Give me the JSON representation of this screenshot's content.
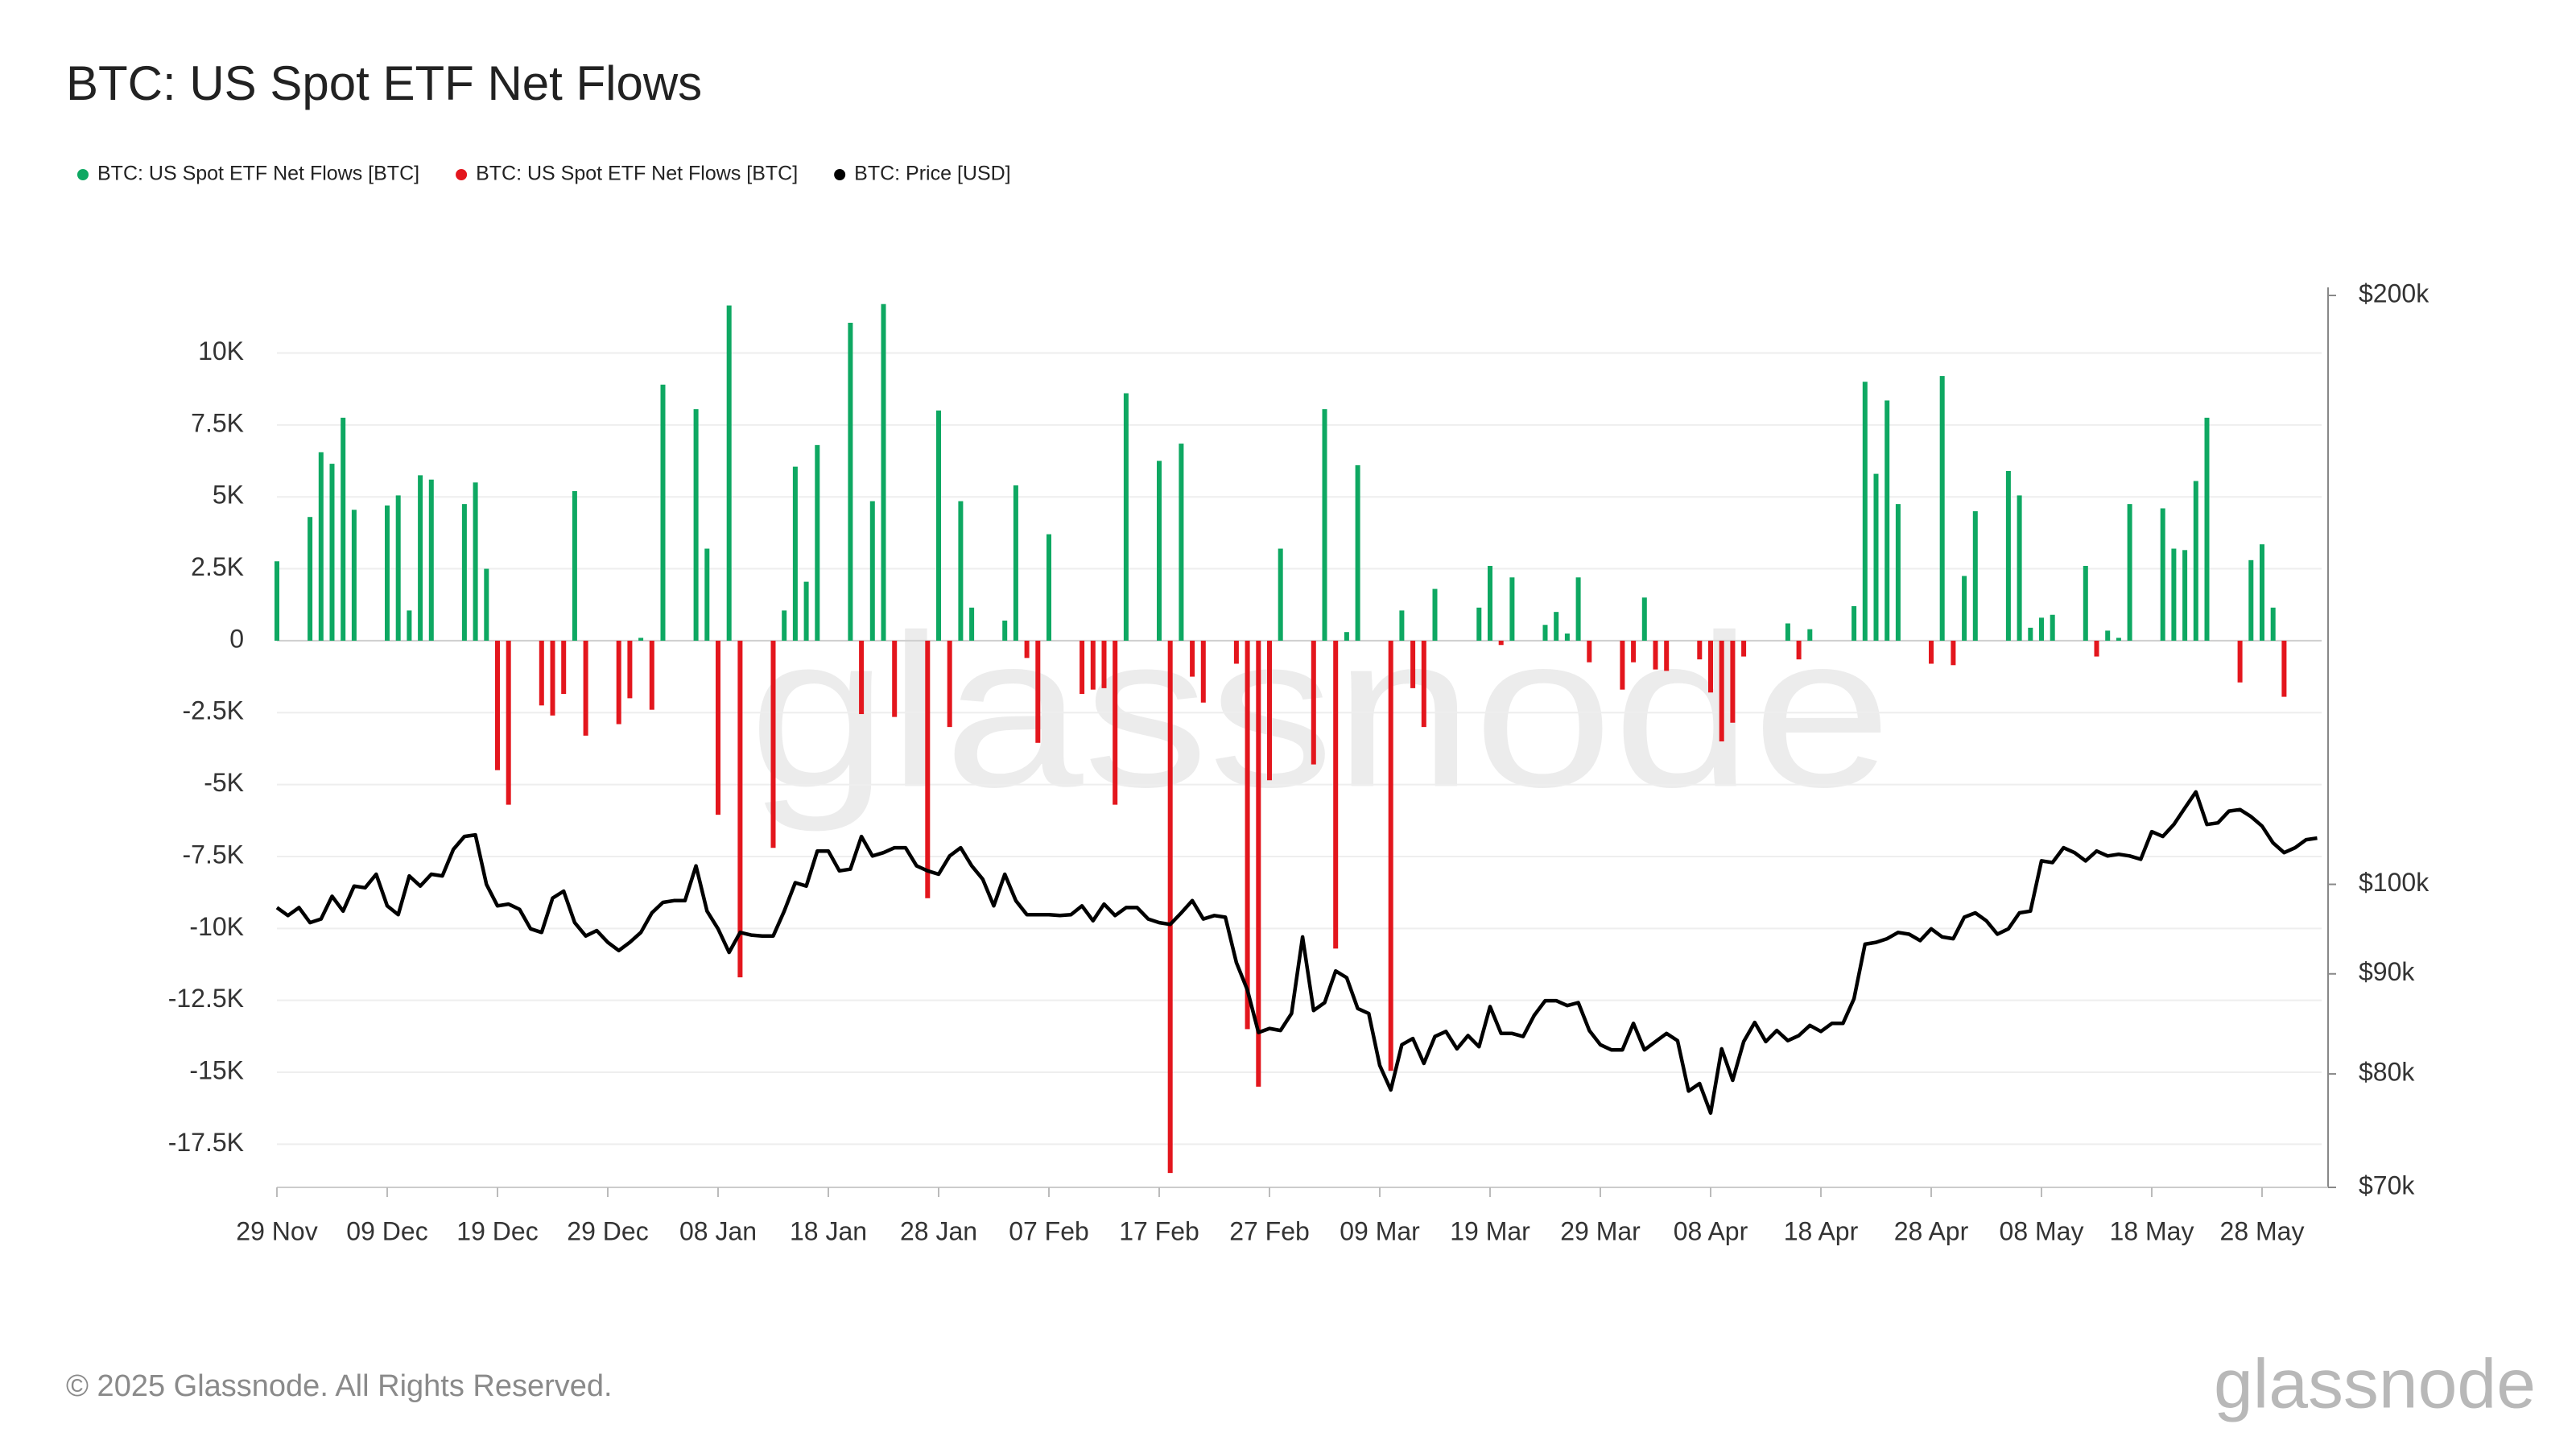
{
  "chart_data": {
    "type": "bar",
    "title": "BTC: US Spot ETF Net Flows",
    "copyright": "© 2025 Glassnode. All Rights Reserved.",
    "logo": "glassnode",
    "watermark": "glassnode",
    "legend": "top-left",
    "grid": true,
    "categories": [
      "29 Nov",
      null,
      null,
      null,
      null,
      null,
      null,
      null,
      null,
      null,
      "09 Dec",
      null,
      null,
      null,
      null,
      null,
      null,
      null,
      null,
      null,
      "19 Dec",
      null,
      null,
      null,
      null,
      null,
      null,
      null,
      null,
      null,
      "29 Dec",
      null,
      null,
      null,
      null,
      null,
      null,
      null,
      null,
      null,
      "08 Jan",
      null,
      null,
      null,
      null,
      null,
      null,
      null,
      null,
      null,
      "18 Jan",
      null,
      null,
      null,
      null,
      null,
      null,
      null,
      null,
      null,
      "28 Jan",
      null,
      null,
      null,
      null,
      null,
      null,
      null,
      null,
      null,
      "07 Feb",
      null,
      null,
      null,
      null,
      null,
      null,
      null,
      null,
      null,
      "17 Feb",
      null,
      null,
      null,
      null,
      null,
      null,
      null,
      null,
      null,
      "27 Feb",
      null,
      null,
      null,
      null,
      null,
      null,
      null,
      null,
      null,
      "09 Mar",
      null,
      null,
      null,
      null,
      null,
      null,
      null,
      null,
      null,
      "19 Mar",
      null,
      null,
      null,
      null,
      null,
      null,
      null,
      null,
      null,
      "29 Mar",
      null,
      null,
      null,
      null,
      null,
      null,
      null,
      null,
      null,
      "08 Apr",
      null,
      null,
      null,
      null,
      null,
      null,
      null,
      null,
      null,
      "18 Apr",
      null,
      null,
      null,
      null,
      null,
      null,
      null,
      null,
      null,
      "28 Apr",
      null,
      null,
      null,
      null,
      null,
      null,
      null,
      null,
      null,
      "08 May",
      null,
      null,
      null,
      null,
      null,
      null,
      null,
      null,
      null,
      "18 May",
      null,
      null,
      null,
      null,
      null,
      null,
      null,
      null,
      null,
      "28 May",
      null,
      null,
      null,
      null,
      null
    ],
    "ylim": [
      -19000,
      12000
    ],
    "yticks": [
      {
        "value": -17500,
        "label": "-17.5K"
      },
      {
        "value": -15000,
        "label": "-15K"
      },
      {
        "value": -12500,
        "label": "-12.5K"
      },
      {
        "value": -10000,
        "label": "-10K"
      },
      {
        "value": -7500,
        "label": "-7.5K"
      },
      {
        "value": -5000,
        "label": "-5K"
      },
      {
        "value": -2500,
        "label": "-2.5K"
      },
      0,
      {
        "value": 2500,
        "label": "2.5K"
      },
      {
        "value": 5000,
        "label": "5K"
      },
      {
        "value": 7500,
        "label": "7.5K"
      },
      {
        "value": 10000,
        "label": "10K"
      }
    ],
    "y2lim": [
      70000,
      200000
    ],
    "y2scale": "log",
    "y2ticks": [
      {
        "value": 70000,
        "label": "$70k"
      },
      {
        "value": 80000,
        "label": "$80k"
      },
      {
        "value": 90000,
        "label": "$90k"
      },
      {
        "value": 100000,
        "label": "$100k"
      },
      {
        "value": 200000,
        "label": "$200k"
      }
    ],
    "series": [
      {
        "name": "BTC: US Spot ETF Net Flows [BTC]",
        "type": "bar",
        "color": "#0ea862",
        "values": [
          2760,
          null,
          null,
          4300,
          6550,
          6150,
          7750,
          4550,
          null,
          null,
          4700,
          5050,
          1050,
          5750,
          5600,
          null,
          null,
          4750,
          5500,
          2500,
          null,
          null,
          null,
          null,
          null,
          null,
          null,
          5200,
          null,
          null,
          null,
          null,
          null,
          100,
          null,
          8900,
          null,
          null,
          8050,
          3200,
          null,
          11650,
          null,
          null,
          null,
          null,
          1050,
          6050,
          2050,
          6800,
          null,
          null,
          11050,
          null,
          4850,
          11700,
          null,
          null,
          null,
          null,
          8000,
          null,
          4850,
          1150,
          null,
          null,
          700,
          5400,
          null,
          null,
          3700,
          null,
          null,
          null,
          null,
          null,
          null,
          8600,
          null,
          null,
          6250,
          null,
          6850,
          null,
          null,
          null,
          null,
          null,
          null,
          null,
          null,
          3200,
          null,
          null,
          null,
          8050,
          null,
          300,
          6100,
          null,
          null,
          null,
          1050,
          null,
          null,
          1800,
          null,
          null,
          null,
          1150,
          2600,
          null,
          2200,
          null,
          null,
          550,
          1000,
          250,
          2200,
          null,
          null,
          null,
          null,
          null,
          1500,
          null,
          null,
          null,
          null,
          null,
          null,
          null,
          null,
          null,
          null,
          null,
          null,
          600,
          null,
          400,
          null,
          null,
          null,
          1200,
          9000,
          5800,
          8350,
          4750,
          null,
          null,
          null,
          9200,
          null,
          2250,
          4500,
          null,
          null,
          5900,
          5050,
          450,
          800,
          900,
          null,
          null,
          2600,
          null,
          350,
          100,
          4750,
          null,
          null,
          4600,
          3200,
          3150,
          5550,
          7750,
          null,
          null,
          null,
          2800,
          3350,
          1150,
          null,
          null,
          null,
          null
        ]
      },
      {
        "name": "BTC: US Spot ETF Net Flows [BTC]",
        "type": "bar",
        "color": "#e3161d",
        "values": [
          null,
          null,
          null,
          null,
          null,
          null,
          null,
          null,
          null,
          null,
          null,
          null,
          null,
          null,
          null,
          null,
          null,
          null,
          null,
          null,
          -4500,
          -5700,
          null,
          null,
          -2250,
          -2600,
          -1850,
          null,
          -3300,
          null,
          null,
          -2900,
          -2000,
          null,
          -2400,
          null,
          null,
          null,
          null,
          null,
          -6050,
          null,
          -11700,
          null,
          null,
          -7200,
          null,
          null,
          null,
          null,
          null,
          null,
          null,
          -2550,
          null,
          null,
          -2650,
          null,
          null,
          -8950,
          null,
          -3000,
          null,
          null,
          null,
          null,
          null,
          null,
          -600,
          -3550,
          null,
          null,
          null,
          -1850,
          -1700,
          -1650,
          -5700,
          null,
          null,
          null,
          null,
          -18500,
          null,
          -1250,
          -2150,
          null,
          null,
          -800,
          -13500,
          -15500,
          -4850,
          null,
          null,
          null,
          -4300,
          null,
          -10700,
          null,
          null,
          null,
          null,
          -14950,
          null,
          -1650,
          -3000,
          null,
          null,
          null,
          null,
          null,
          null,
          -150,
          null,
          null,
          null,
          null,
          null,
          null,
          null,
          -750,
          null,
          null,
          -1700,
          -750,
          null,
          -1000,
          -1050,
          null,
          null,
          -650,
          -1800,
          -3500,
          -2850,
          -550,
          null,
          null,
          null,
          null,
          -650,
          null,
          null,
          null,
          null,
          null,
          null,
          null,
          null,
          null,
          null,
          null,
          -800,
          null,
          -850,
          null,
          null,
          null,
          null,
          null,
          null,
          null,
          null,
          null,
          null,
          null,
          null,
          -550,
          null,
          null,
          null,
          null,
          null,
          null,
          null,
          null,
          null,
          null,
          null,
          null,
          -1450,
          null,
          null,
          null,
          -1950,
          null,
          null,
          null
        ]
      },
      {
        "name": "BTC: Price [USD]",
        "type": "line",
        "axis": "y2",
        "color": "#000000",
        "values": [
          97300,
          96400,
          97300,
          95600,
          96000,
          98600,
          96900,
          99800,
          99600,
          101200,
          97500,
          96500,
          101000,
          99800,
          101200,
          101000,
          104200,
          105800,
          106000,
          100000,
          97500,
          97700,
          97100,
          94900,
          94500,
          98400,
          99200,
          95600,
          94100,
          94700,
          93400,
          92500,
          93400,
          94500,
          96700,
          97900,
          98100,
          98100,
          102200,
          96900,
          94900,
          92300,
          94500,
          94200,
          94100,
          94100,
          96900,
          100200,
          99800,
          104000,
          104000,
          101600,
          101800,
          105800,
          103400,
          103800,
          104400,
          104400,
          102200,
          101600,
          101200,
          103400,
          104400,
          102200,
          100600,
          97500,
          101200,
          98100,
          96500,
          96500,
          96500,
          96400,
          96500,
          97500,
          95800,
          97700,
          96400,
          97300,
          97300,
          96000,
          95600,
          95400,
          96700,
          98100,
          96000,
          96400,
          96200,
          91200,
          88300,
          84000,
          84400,
          84200,
          85900,
          94000,
          86200,
          87000,
          90300,
          89600,
          86400,
          85900,
          80800,
          78500,
          82800,
          83400,
          81000,
          83600,
          84100,
          82400,
          83700,
          82600,
          86600,
          83900,
          83900,
          83600,
          85700,
          87200,
          87200,
          86700,
          87000,
          84200,
          82800,
          82300,
          82300,
          84900,
          82300,
          83100,
          83900,
          83200,
          78400,
          79100,
          76400,
          82400,
          79400,
          83100,
          85000,
          83100,
          84200,
          83200,
          83700,
          84700,
          84100,
          84900,
          84900,
          87400,
          93200,
          93400,
          93800,
          94500,
          94300,
          93600,
          94900,
          94000,
          93800,
          96200,
          96700,
          95800,
          94300,
          94900,
          96700,
          96900,
          102800,
          102600,
          104400,
          103800,
          102800,
          104000,
          103400,
          103600,
          103400,
          103000,
          106400,
          105800,
          107300,
          109400,
          111500,
          107300,
          107500,
          109000,
          109200,
          108300,
          107100,
          105000,
          103800,
          104400,
          105400,
          105600
        ]
      }
    ]
  }
}
